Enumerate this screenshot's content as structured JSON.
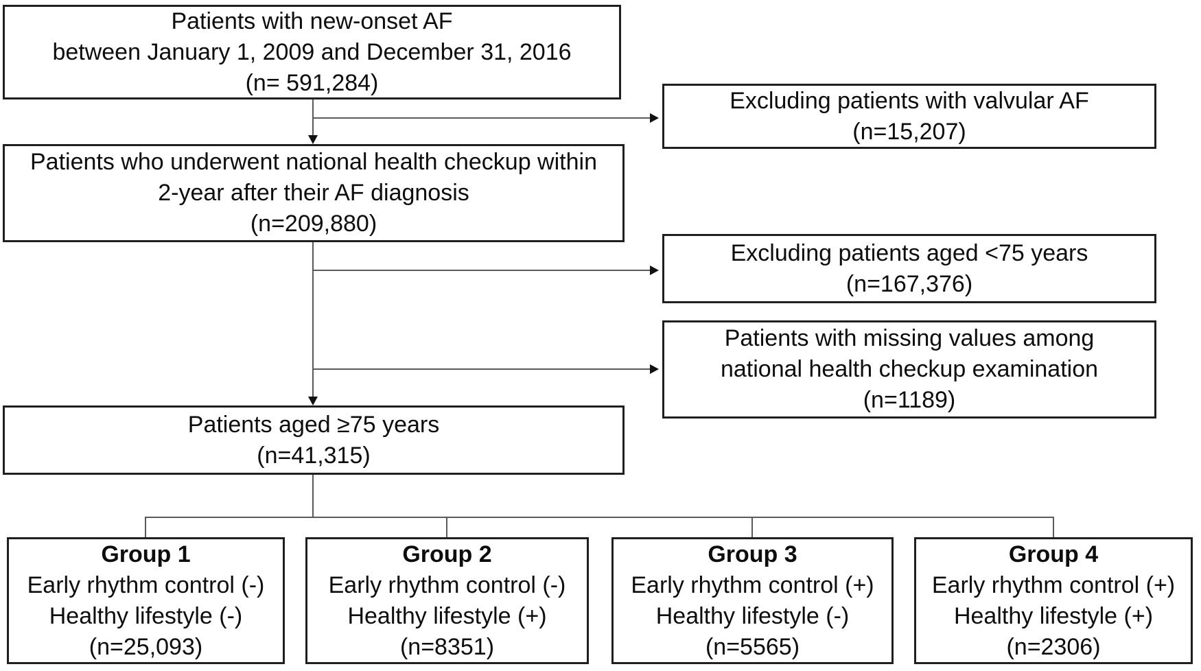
{
  "figure": {
    "title": "Patient selection flow diagram",
    "background_color": "#ffffff",
    "box_border_color": "#1f1f1f",
    "text_color": "#0d0d0d",
    "connector_color": "#5a5a5a",
    "arrowhead_color": "#111111"
  },
  "flow": {
    "main": [
      {
        "lines": [
          "Patients with new-onset AF",
          "between January 1, 2009 and December 31, 2016",
          "(n= 591,284)"
        ]
      },
      {
        "lines": [
          "Patients who underwent national health checkup within",
          "2-year after their AF diagnosis",
          "(n=209,880)"
        ]
      },
      {
        "lines": [
          "Patients aged ≥75 years",
          "(n=41,315)"
        ]
      }
    ],
    "exclusions": [
      {
        "lines": [
          "Excluding patients with valvular AF",
          "(n=15,207)"
        ]
      },
      {
        "lines": [
          "Excluding patients aged <75 years",
          "(n=167,376)"
        ]
      },
      {
        "lines": [
          "Patients with missing values among",
          "national health checkup examination",
          "(n=1189)"
        ]
      }
    ],
    "groups": [
      {
        "title": "Group 1",
        "lines": [
          "Early rhythm control (-)",
          "Healthy lifestyle (-)",
          "(n=25,093)"
        ]
      },
      {
        "title": "Group 2",
        "lines": [
          "Early rhythm control (-)",
          "Healthy lifestyle (+)",
          "(n=8351)"
        ]
      },
      {
        "title": "Group 3",
        "lines": [
          "Early rhythm control (+)",
          "Healthy lifestyle (-)",
          "(n=5565)"
        ]
      },
      {
        "title": "Group 4",
        "lines": [
          "Early rhythm control (+)",
          "Healthy lifestyle (+)",
          "(n=2306)"
        ]
      }
    ]
  }
}
